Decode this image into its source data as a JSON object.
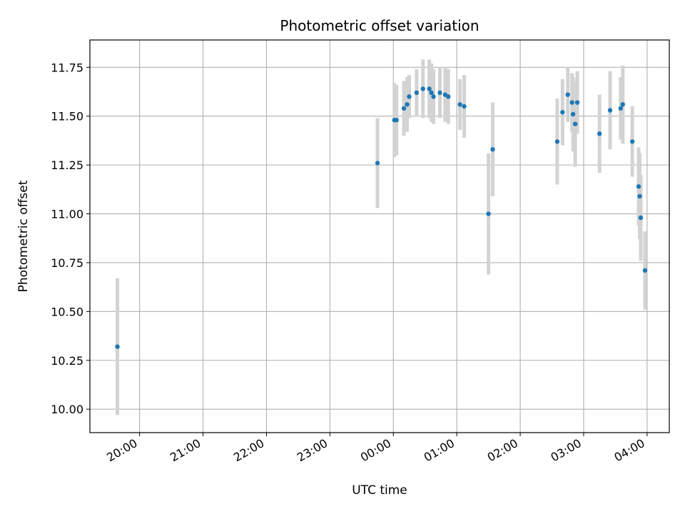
{
  "chart_data": {
    "type": "scatter",
    "title": "Photometric offset variation",
    "xlabel": "UTC time",
    "ylabel": "Photometric offset",
    "x_axis_kind": "time",
    "x_ticks": [
      "20:00",
      "21:00",
      "22:00",
      "23:00",
      "00:00",
      "01:00",
      "02:00",
      "03:00",
      "04:00"
    ],
    "y_ticks": [
      "10.00",
      "10.25",
      "10.50",
      "10.75",
      "11.00",
      "11.25",
      "11.50",
      "11.75"
    ],
    "xlim": [
      "19:13",
      "04:21"
    ],
    "ylim": [
      9.88,
      11.89
    ],
    "grid": true,
    "marker_color": "#1f77b4",
    "errorbar_color": "#d3d3d3",
    "points": [
      {
        "time": "19:39",
        "value": 10.32,
        "err": 0.35
      },
      {
        "time": "23:45",
        "value": 11.26,
        "err": 0.23
      },
      {
        "time": "00:01",
        "value": 11.48,
        "err": 0.19
      },
      {
        "time": "00:03",
        "value": 11.48,
        "err": 0.18
      },
      {
        "time": "00:10",
        "value": 11.54,
        "err": 0.14
      },
      {
        "time": "00:13",
        "value": 11.56,
        "err": 0.14
      },
      {
        "time": "00:15",
        "value": 11.6,
        "err": 0.11
      },
      {
        "time": "00:22",
        "value": 11.62,
        "err": 0.12
      },
      {
        "time": "00:28",
        "value": 11.64,
        "err": 0.15
      },
      {
        "time": "00:34",
        "value": 11.64,
        "err": 0.15
      },
      {
        "time": "00:36",
        "value": 11.62,
        "err": 0.15
      },
      {
        "time": "00:38",
        "value": 11.6,
        "err": 0.14
      },
      {
        "time": "00:44",
        "value": 11.62,
        "err": 0.13
      },
      {
        "time": "00:49",
        "value": 11.61,
        "err": 0.14
      },
      {
        "time": "00:52",
        "value": 11.6,
        "err": 0.14
      },
      {
        "time": "01:03",
        "value": 11.56,
        "err": 0.13
      },
      {
        "time": "01:07",
        "value": 11.55,
        "err": 0.16
      },
      {
        "time": "01:30",
        "value": 11.0,
        "err": 0.31
      },
      {
        "time": "01:34",
        "value": 11.33,
        "err": 0.24
      },
      {
        "time": "02:35",
        "value": 11.37,
        "err": 0.22
      },
      {
        "time": "02:40",
        "value": 11.52,
        "err": 0.17
      },
      {
        "time": "02:45",
        "value": 11.61,
        "err": 0.14
      },
      {
        "time": "02:49",
        "value": 11.57,
        "err": 0.15
      },
      {
        "time": "02:50",
        "value": 11.51,
        "err": 0.19
      },
      {
        "time": "02:52",
        "value": 11.46,
        "err": 0.22
      },
      {
        "time": "02:54",
        "value": 11.57,
        "err": 0.16
      },
      {
        "time": "03:15",
        "value": 11.41,
        "err": 0.2
      },
      {
        "time": "03:25",
        "value": 11.53,
        "err": 0.2
      },
      {
        "time": "03:35",
        "value": 11.54,
        "err": 0.16
      },
      {
        "time": "03:37",
        "value": 11.56,
        "err": 0.2
      },
      {
        "time": "03:46",
        "value": 11.37,
        "err": 0.18
      },
      {
        "time": "03:52",
        "value": 11.14,
        "err": 0.2
      },
      {
        "time": "03:53",
        "value": 11.09,
        "err": 0.22
      },
      {
        "time": "03:54",
        "value": 10.98,
        "err": 0.22
      },
      {
        "time": "03:58",
        "value": 10.71,
        "err": 0.2
      }
    ]
  }
}
